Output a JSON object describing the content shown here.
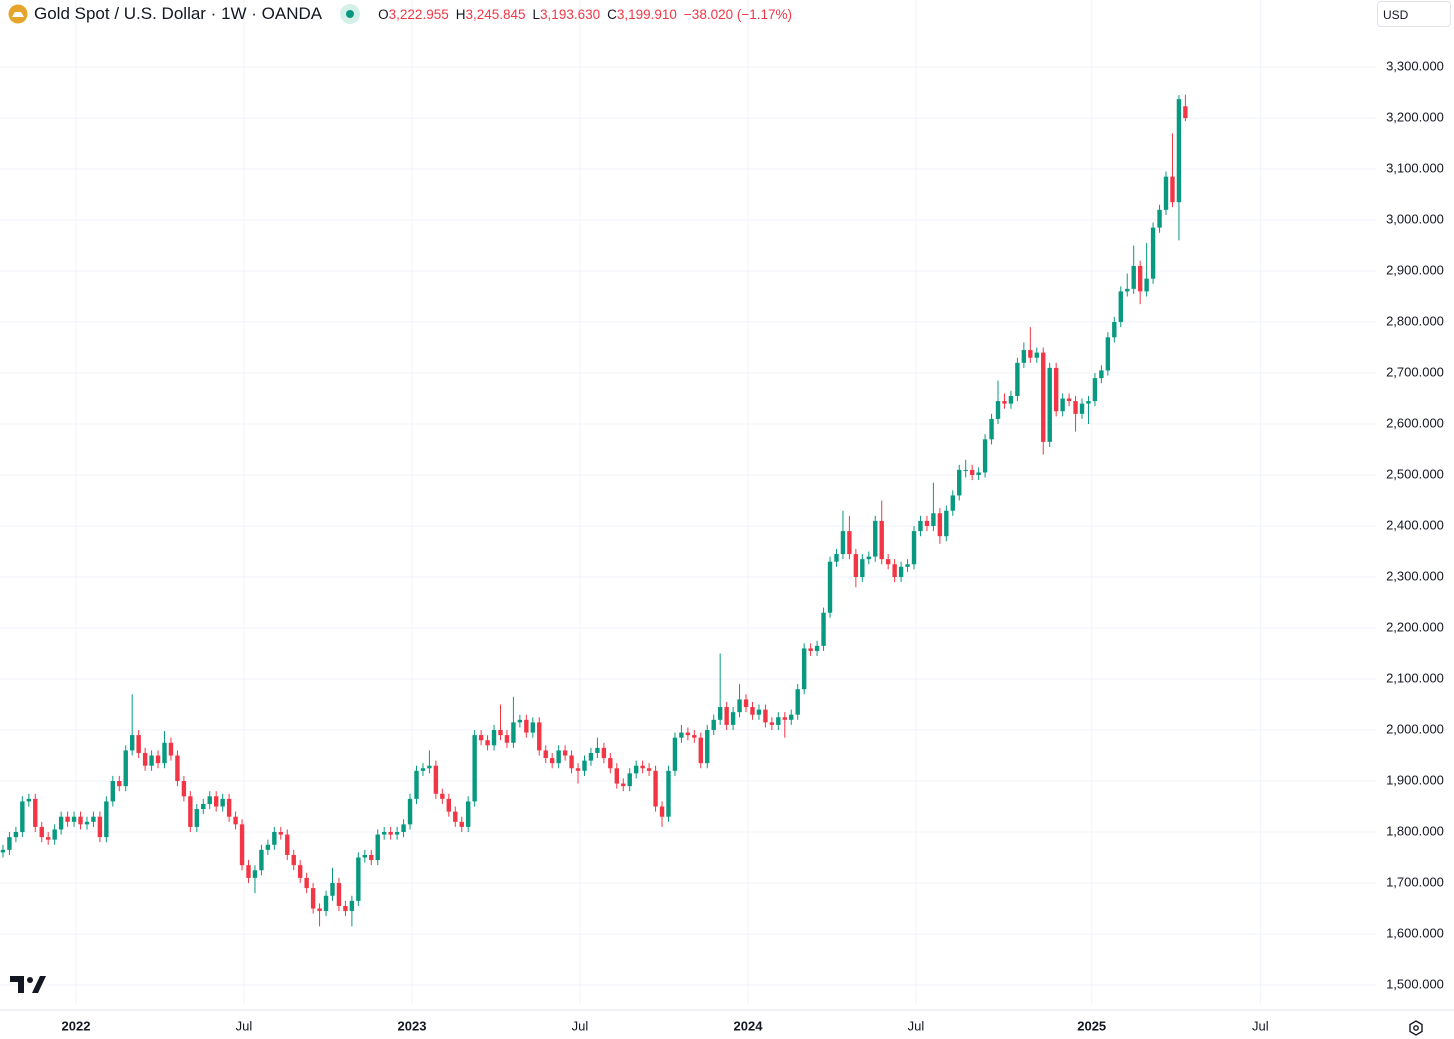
{
  "header": {
    "symbol": "Gold Spot / U.S. Dollar · 1W · OANDA",
    "open_label": "O",
    "open": "3,222.955",
    "high_label": "H",
    "high": "3,245.845",
    "low_label": "L",
    "low": "3,193.630",
    "close_label": "C",
    "close": "3,199.910",
    "change": "−38.020 (−1.17%)",
    "currency": "USD"
  },
  "chart_data": {
    "type": "candlestick",
    "up_color": "#089981",
    "down_color": "#f23645",
    "grid": true,
    "xlim": [
      -0.46,
      212.5
    ],
    "xticks": [
      {
        "value": 11.3,
        "label": "2022"
      },
      {
        "value": 37.3,
        "label": "Jul"
      },
      {
        "value": 63.3,
        "label": "2023"
      },
      {
        "value": 89.3,
        "label": "Jul"
      },
      {
        "value": 115.3,
        "label": "2024"
      },
      {
        "value": 141.3,
        "label": "Jul"
      },
      {
        "value": 168.5,
        "label": "2025"
      },
      {
        "value": 194.6,
        "label": "Jul"
      }
    ],
    "ylim": [
      1460.8,
      3431.4
    ],
    "yticks": [
      {
        "value": 1500,
        "label": "1,500.000"
      },
      {
        "value": 1600,
        "label": "1,600.000"
      },
      {
        "value": 1700,
        "label": "1,700.000"
      },
      {
        "value": 1800,
        "label": "1,800.000"
      },
      {
        "value": 1900,
        "label": "1,900.000"
      },
      {
        "value": 2000,
        "label": "2,000.000"
      },
      {
        "value": 2100,
        "label": "2,100.000"
      },
      {
        "value": 2200,
        "label": "2,200.000"
      },
      {
        "value": 2300,
        "label": "2,300.000"
      },
      {
        "value": 2400,
        "label": "2,400.000"
      },
      {
        "value": 2500,
        "label": "2,500.000"
      },
      {
        "value": 2600,
        "label": "2,600.000"
      },
      {
        "value": 2700,
        "label": "2,700.000"
      },
      {
        "value": 2800,
        "label": "2,800.000"
      },
      {
        "value": 2900,
        "label": "2,900.000"
      },
      {
        "value": 3000,
        "label": "3,000.000"
      },
      {
        "value": 3100,
        "label": "3,100.000"
      },
      {
        "value": 3200,
        "label": "3,200.000"
      },
      {
        "value": 3300,
        "label": "3,300.000"
      }
    ],
    "open": [
      1760,
      1765,
      1790,
      1800,
      1860,
      1865,
      1810,
      1790,
      1785,
      1805,
      1830,
      1820,
      1830,
      1815,
      1820,
      1830,
      1790,
      1860,
      1900,
      1890,
      1960,
      1990,
      1955,
      1930,
      1950,
      1935,
      1975,
      1950,
      1900,
      1870,
      1810,
      1845,
      1855,
      1870,
      1850,
      1865,
      1830,
      1815,
      1735,
      1710,
      1725,
      1765,
      1775,
      1800,
      1795,
      1755,
      1735,
      1710,
      1690,
      1650,
      1645,
      1675,
      1700,
      1655,
      1645,
      1665,
      1750,
      1755,
      1745,
      1795,
      1800,
      1795,
      1800,
      1815,
      1865,
      1920,
      1925,
      1930,
      1875,
      1865,
      1840,
      1820,
      1810,
      1860,
      1990,
      1980,
      1970,
      2000,
      1990,
      1975,
      2015,
      2020,
      1995,
      2015,
      1960,
      1945,
      1935,
      1960,
      1950,
      1925,
      1920,
      1940,
      1955,
      1965,
      1945,
      1925,
      1895,
      1890,
      1915,
      1930,
      1925,
      1920,
      1850,
      1830,
      1920,
      1985,
      1995,
      1990,
      1985,
      1935,
      2000,
      2020,
      2045,
      2010,
      2035,
      2060,
      2045,
      2030,
      2040,
      2015,
      2010,
      2025,
      2020,
      2030,
      2080,
      2160,
      2155,
      2165,
      2230,
      2330,
      2345,
      2390,
      2345,
      2300,
      2335,
      2340,
      2410,
      2335,
      2325,
      2300,
      2320,
      2325,
      2390,
      2410,
      2400,
      2425,
      2380,
      2430,
      2460,
      2510,
      2510,
      2500,
      2505,
      2570,
      2610,
      2645,
      2640,
      2655,
      2720,
      2745,
      2730,
      2740,
      2565,
      2710,
      2625,
      2650,
      2645,
      2620,
      2640,
      2645,
      2690,
      2705,
      2770,
      2800,
      2860,
      2865,
      2910,
      2860,
      2885,
      2985,
      3020,
      3085,
      3035,
      3222.955
    ],
    "high": [
      1775,
      1800,
      1810,
      1870,
      1875,
      1875,
      1820,
      1800,
      1815,
      1840,
      1840,
      1840,
      1840,
      1830,
      1840,
      1840,
      1870,
      1910,
      1910,
      1970,
      2070,
      2000,
      1965,
      1960,
      1960,
      1998,
      1985,
      1960,
      1910,
      1880,
      1855,
      1865,
      1880,
      1880,
      1875,
      1875,
      1840,
      1825,
      1745,
      1735,
      1775,
      1785,
      1810,
      1810,
      1805,
      1765,
      1745,
      1720,
      1700,
      1660,
      1685,
      1730,
      1710,
      1665,
      1675,
      1760,
      1765,
      1765,
      1805,
      1810,
      1810,
      1810,
      1825,
      1875,
      1930,
      1935,
      1960,
      1940,
      1885,
      1875,
      1850,
      1830,
      1870,
      2000,
      2000,
      1990,
      2010,
      2050,
      2000,
      2065,
      2030,
      2030,
      2025,
      2025,
      1970,
      1955,
      1970,
      1970,
      1960,
      1935,
      1950,
      1965,
      1985,
      1975,
      1955,
      1935,
      1905,
      1925,
      1940,
      1940,
      1935,
      1930,
      1860,
      1930,
      1995,
      2010,
      2005,
      2000,
      1995,
      2010,
      2030,
      2150,
      2055,
      2045,
      2090,
      2070,
      2055,
      2050,
      2050,
      2025,
      2035,
      2035,
      2040,
      2090,
      2170,
      2170,
      2175,
      2240,
      2340,
      2355,
      2430,
      2420,
      2355,
      2345,
      2350,
      2420,
      2450,
      2345,
      2335,
      2330,
      2335,
      2400,
      2420,
      2420,
      2485,
      2435,
      2440,
      2470,
      2520,
      2530,
      2520,
      2515,
      2580,
      2620,
      2685,
      2660,
      2665,
      2730,
      2760,
      2790,
      2750,
      2750,
      2720,
      2720,
      2660,
      2660,
      2655,
      2650,
      2655,
      2700,
      2715,
      2780,
      2810,
      2870,
      2895,
      2950,
      2920,
      2955,
      2995,
      3030,
      3095,
      3170,
      3245,
      3245.845
    ],
    "low": [
      1750,
      1755,
      1780,
      1790,
      1850,
      1800,
      1780,
      1775,
      1775,
      1795,
      1810,
      1810,
      1805,
      1805,
      1810,
      1780,
      1780,
      1850,
      1880,
      1880,
      1950,
      1945,
      1920,
      1920,
      1925,
      1925,
      1940,
      1890,
      1860,
      1800,
      1800,
      1835,
      1845,
      1840,
      1840,
      1820,
      1805,
      1725,
      1700,
      1680,
      1715,
      1755,
      1765,
      1785,
      1745,
      1725,
      1700,
      1680,
      1640,
      1615,
      1635,
      1665,
      1645,
      1635,
      1615,
      1655,
      1740,
      1735,
      1735,
      1785,
      1785,
      1785,
      1790,
      1805,
      1855,
      1910,
      1915,
      1865,
      1855,
      1830,
      1810,
      1800,
      1800,
      1850,
      1970,
      1960,
      1960,
      1980,
      1965,
      1965,
      2005,
      1985,
      1985,
      1950,
      1935,
      1925,
      1925,
      1940,
      1915,
      1895,
      1910,
      1930,
      1945,
      1935,
      1915,
      1885,
      1880,
      1880,
      1905,
      1915,
      1910,
      1840,
      1810,
      1820,
      1910,
      1975,
      1980,
      1975,
      1925,
      1925,
      1990,
      2010,
      2000,
      2000,
      2025,
      2035,
      2020,
      2020,
      2005,
      2000,
      2000,
      1985,
      2010,
      2020,
      2070,
      2145,
      2145,
      2155,
      2220,
      2320,
      2335,
      2335,
      2280,
      2290,
      2325,
      2330,
      2325,
      2315,
      2290,
      2290,
      2310,
      2315,
      2380,
      2390,
      2390,
      2365,
      2370,
      2420,
      2450,
      2495,
      2490,
      2490,
      2495,
      2560,
      2600,
      2630,
      2630,
      2645,
      2710,
      2720,
      2720,
      2540,
      2555,
      2615,
      2615,
      2635,
      2585,
      2610,
      2600,
      2635,
      2680,
      2695,
      2760,
      2790,
      2850,
      2855,
      2835,
      2850,
      2875,
      2975,
      3010,
      3025,
      2960,
      3193.63
    ],
    "close": [
      1765,
      1790,
      1800,
      1860,
      1865,
      1810,
      1790,
      1785,
      1805,
      1830,
      1820,
      1830,
      1815,
      1820,
      1830,
      1790,
      1860,
      1900,
      1890,
      1960,
      1990,
      1955,
      1930,
      1950,
      1935,
      1975,
      1950,
      1900,
      1870,
      1810,
      1845,
      1855,
      1870,
      1850,
      1865,
      1830,
      1815,
      1735,
      1710,
      1725,
      1765,
      1775,
      1800,
      1795,
      1755,
      1735,
      1710,
      1690,
      1650,
      1645,
      1675,
      1700,
      1655,
      1645,
      1665,
      1750,
      1755,
      1745,
      1795,
      1800,
      1795,
      1800,
      1815,
      1865,
      1920,
      1925,
      1930,
      1875,
      1865,
      1840,
      1820,
      1810,
      1860,
      1990,
      1980,
      1970,
      2000,
      1990,
      1975,
      2015,
      2020,
      1995,
      2015,
      1960,
      1945,
      1935,
      1960,
      1950,
      1925,
      1920,
      1940,
      1955,
      1965,
      1945,
      1925,
      1895,
      1890,
      1915,
      1930,
      1925,
      1920,
      1850,
      1830,
      1920,
      1985,
      1995,
      1990,
      1985,
      1935,
      2000,
      2020,
      2045,
      2010,
      2035,
      2060,
      2045,
      2030,
      2040,
      2015,
      2010,
      2025,
      2020,
      2030,
      2080,
      2160,
      2155,
      2165,
      2230,
      2330,
      2345,
      2390,
      2345,
      2300,
      2335,
      2340,
      2410,
      2335,
      2325,
      2300,
      2320,
      2325,
      2390,
      2410,
      2400,
      2425,
      2380,
      2430,
      2460,
      2510,
      2510,
      2500,
      2505,
      2570,
      2610,
      2645,
      2640,
      2655,
      2720,
      2745,
      2730,
      2740,
      2565,
      2710,
      2625,
      2650,
      2645,
      2620,
      2640,
      2645,
      2690,
      2705,
      2770,
      2800,
      2860,
      2865,
      2910,
      2860,
      2885,
      2985,
      3020,
      3085,
      3035,
      3237,
      3199.91
    ]
  }
}
